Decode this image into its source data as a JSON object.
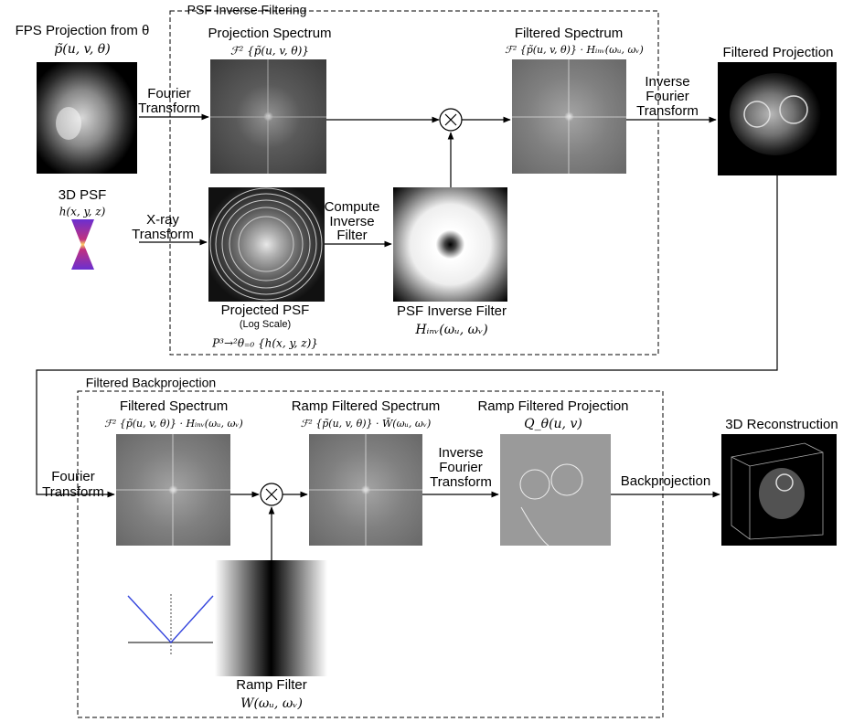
{
  "psf_box": {
    "label": "PSF Inverse Filtering"
  },
  "backprojection_box": {
    "label": "Filtered Backprojection"
  },
  "nodes": {
    "fps_projection": {
      "title": "FPS Projection from θ",
      "formula": "p̃(u, v, θ)"
    },
    "psf3d": {
      "title": "3D PSF",
      "formula": "h(x, y, z)"
    },
    "projection_spectrum": {
      "title": "Projection Spectrum",
      "formula": "ℱ² {p̃(u, v, θ)}"
    },
    "filtered_spectrum_top": {
      "title": "Filtered Spectrum",
      "formula": "ℱ² {p̃(u, v, θ)} · Hᵢₙᵥ(ωᵤ, ωᵥ)"
    },
    "filtered_projection": {
      "title": "Filtered Projection"
    },
    "projected_psf": {
      "title": "Projected PSF",
      "subtitle": "(Log Scale)",
      "formula": "P³→²θ₌₀ {h(x, y, z)}"
    },
    "psf_inverse_filter": {
      "title": "PSF Inverse Filter",
      "formula": "Hᵢₙᵥ(ωᵤ, ωᵥ)"
    },
    "filtered_spectrum_bottom": {
      "title": "Filtered Spectrum",
      "formula": "ℱ² {p̃(u, v, θ)} · Hᵢₙᵥ(ωᵤ, ωᵥ)"
    },
    "ramp_filtered_spectrum": {
      "title": "Ramp Filtered Spectrum",
      "formula": "ℱ² {p̃(u, v, θ)} · W̃(ωᵤ, ωᵥ)"
    },
    "ramp_filtered_projection": {
      "title": "Ramp Filtered Projection",
      "formula": "Q_θ(u, v)"
    },
    "reconstruction": {
      "title": "3D Reconstruction"
    },
    "ramp_filter": {
      "title": "Ramp Filter",
      "formula": "W(ωᵤ, ωᵥ)"
    }
  },
  "edges": {
    "fourier_top": [
      "Fourier",
      "Transform"
    ],
    "xray": [
      "X-ray",
      "Transform"
    ],
    "compute_inverse": [
      "Compute",
      "Inverse",
      "Filter"
    ],
    "inverse_fourier_top": [
      "Inverse",
      "Fourier",
      "Transform"
    ],
    "fourier_bottom": [
      "Fourier",
      "Transform"
    ],
    "inverse_fourier_bottom": [
      "Inverse",
      "Fourier",
      "Transform"
    ],
    "backprojection": "Backprojection"
  }
}
